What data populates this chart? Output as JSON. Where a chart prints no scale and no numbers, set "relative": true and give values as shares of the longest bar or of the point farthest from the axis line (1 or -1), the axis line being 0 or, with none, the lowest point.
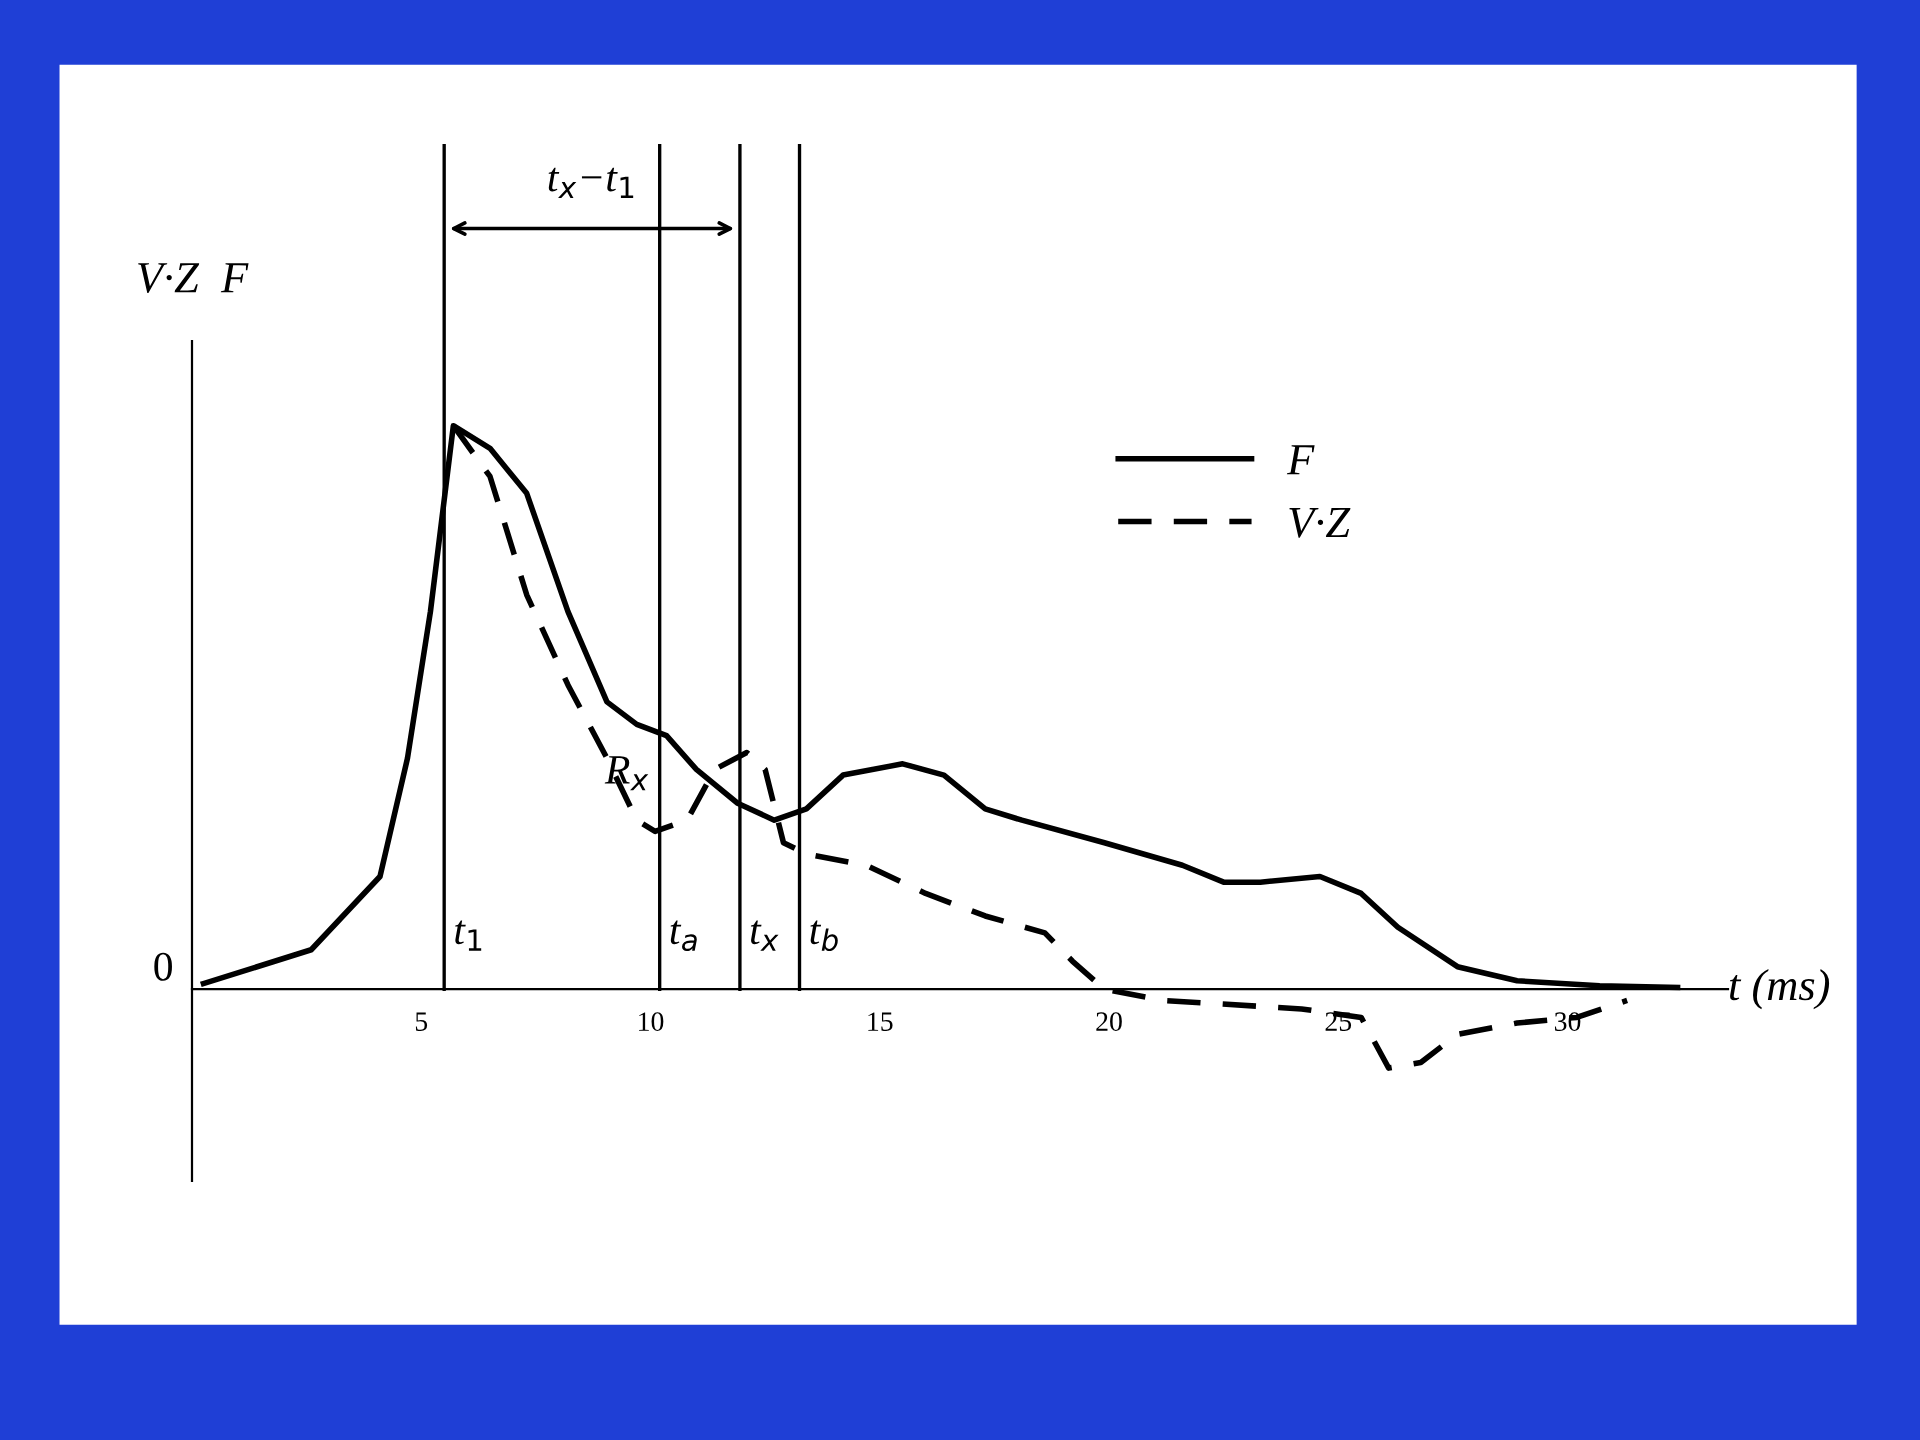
{
  "chart_data": {
    "type": "line",
    "relative": true,
    "xlabel": "t (ms)",
    "ylabel": "V·Z  F",
    "xlim": [
      0,
      33.5
    ],
    "xticks": [
      5,
      10,
      15,
      20,
      25,
      30
    ],
    "grid": false,
    "legend": "top right",
    "marker": "none",
    "series": [
      {
        "name": "F",
        "color": "#000000",
        "line_style": "solid",
        "x": [
          0.25,
          2.6,
          4.1,
          4.7,
          5.2,
          5.7,
          6.5,
          7.3,
          8.2,
          9.05,
          9.7,
          10.35,
          11.0,
          11.9,
          12.7,
          13.4,
          14.2,
          15.5,
          16.4,
          17.3,
          18.1,
          19.9,
          21.6,
          22.5,
          23.3,
          24.6,
          25.5,
          26.3,
          27.6,
          28.9,
          30.7,
          32.4
        ],
        "values": [
          0.01,
          0.07,
          0.2,
          0.41,
          0.67,
          1.0,
          0.96,
          0.88,
          0.67,
          0.51,
          0.47,
          0.45,
          0.39,
          0.33,
          0.3,
          0.32,
          0.38,
          0.4,
          0.38,
          0.32,
          0.3,
          0.26,
          0.22,
          0.19,
          0.19,
          0.2,
          0.17,
          0.11,
          0.04,
          0.015,
          0.006,
          0.003
        ]
      },
      {
        "name": "V·Z",
        "color": "#000000",
        "line_style": "dashed",
        "x": [
          5.7,
          6.5,
          7.3,
          8.2,
          9.05,
          9.7,
          10.1,
          10.8,
          11.4,
          12.1,
          12.5,
          12.9,
          13.4,
          14.7,
          16.0,
          17.3,
          18.6,
          19.2,
          19.9,
          21.2,
          24.2,
          25.5,
          26.1,
          26.8,
          27.6,
          28.9,
          30.2,
          31.3
        ],
        "values": [
          1.0,
          0.91,
          0.7,
          0.54,
          0.41,
          0.3,
          0.28,
          0.3,
          0.39,
          0.42,
          0.39,
          0.26,
          0.24,
          0.22,
          0.17,
          0.13,
          0.1,
          0.05,
          0,
          -0.02,
          -0.035,
          -0.05,
          -0.14,
          -0.13,
          -0.08,
          -0.06,
          -0.05,
          -0.02
        ]
      }
    ],
    "ref_lines": [
      {
        "axis": "x",
        "value": 5.5,
        "label": "t$_{1}$"
      },
      {
        "axis": "x",
        "value": 10.2,
        "label": "t$_{a}$"
      },
      {
        "axis": "x",
        "value": 11.95,
        "label": "t$_{x}$"
      },
      {
        "axis": "x",
        "value": 13.25,
        "label": "t$_{b}$"
      }
    ],
    "annotations": [
      "t$_{x}$−t$_{1}$",
      {
        "text": "R$_{x}$",
        "x": 10.1,
        "y": 0.28
      },
      "0"
    ]
  }
}
